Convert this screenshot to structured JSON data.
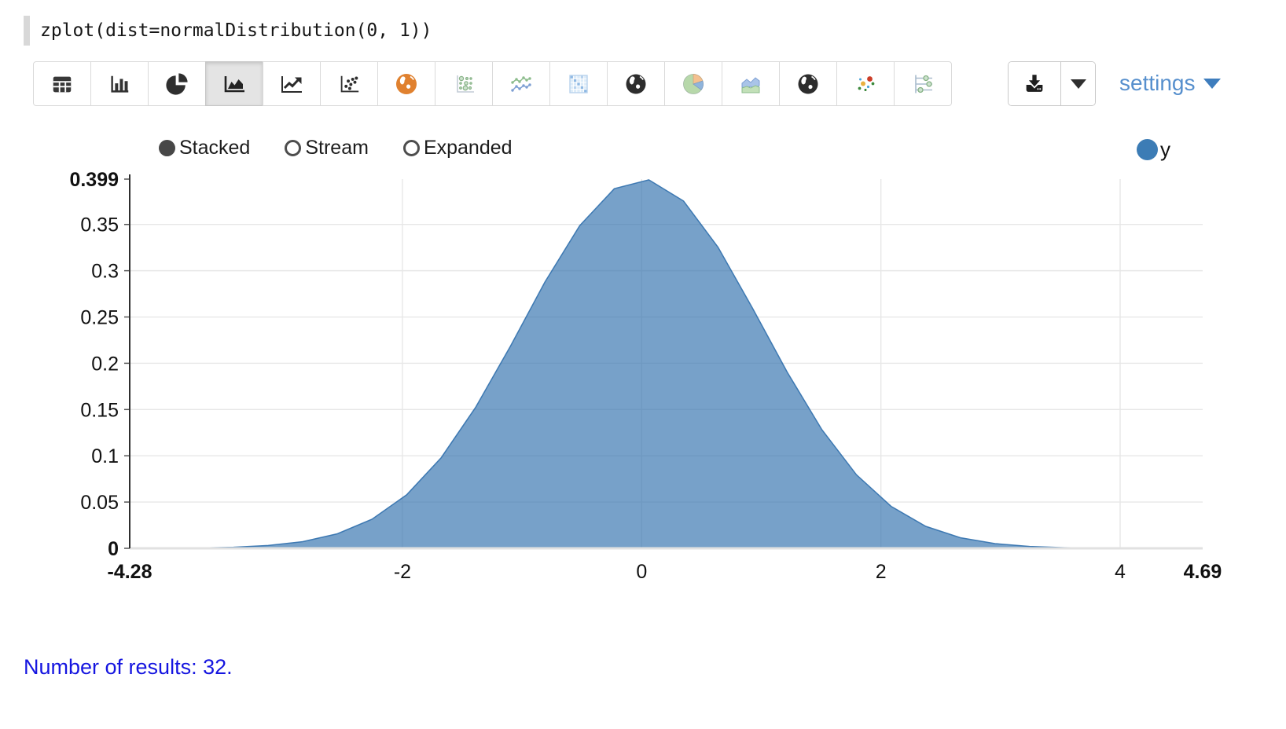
{
  "code_cell": {
    "code": "zplot(dist=normalDistribution(0, 1))"
  },
  "toolbar": {
    "viz_buttons": [
      {
        "icon": "table-icon",
        "selected": false
      },
      {
        "icon": "bar-chart-icon",
        "selected": false
      },
      {
        "icon": "pie-chart-icon",
        "selected": false
      },
      {
        "icon": "area-chart-icon",
        "selected": true
      },
      {
        "icon": "line-chart-icon",
        "selected": false
      },
      {
        "icon": "scatter-plot-icon",
        "selected": false
      },
      {
        "icon": "globe-orange-icon",
        "selected": false
      },
      {
        "icon": "bubble-chart-icon",
        "selected": false
      },
      {
        "icon": "multi-line-chart-icon",
        "selected": false
      },
      {
        "icon": "heatmap-icon",
        "selected": false
      },
      {
        "icon": "globe-dark-icon",
        "selected": false
      },
      {
        "icon": "pie-color-icon",
        "selected": false
      },
      {
        "icon": "stacked-area-icon",
        "selected": false
      },
      {
        "icon": "globe-dark-2-icon",
        "selected": false
      },
      {
        "icon": "scatter-color-icon",
        "selected": false
      },
      {
        "icon": "parallel-coordinates-icon",
        "selected": false
      }
    ],
    "download_icon": "download-icon",
    "download_caret_icon": "caret-down-icon",
    "settings_label": "settings"
  },
  "controls": {
    "radios": [
      {
        "label": "Stacked",
        "selected": true
      },
      {
        "label": "Stream",
        "selected": false
      },
      {
        "label": "Expanded",
        "selected": false
      }
    ],
    "legend": [
      {
        "label": "y",
        "color": "#3c7cb5"
      }
    ]
  },
  "chart_data": {
    "type": "area",
    "title": "",
    "xlabel": "",
    "ylabel": "",
    "xlim": [
      -4.28,
      4.69
    ],
    "ylim": [
      0,
      0.399
    ],
    "grid": true,
    "legend_position": "top-right",
    "x_ticks": [
      "-4.28",
      "-2",
      "0",
      "2",
      "4",
      "4.69"
    ],
    "x_tick_values": [
      -4.28,
      -2,
      0,
      2,
      4,
      4.69
    ],
    "y_ticks": [
      "0.399",
      "0.35",
      "0.3",
      "0.25",
      "0.2",
      "0.15",
      "0.1",
      "0.05",
      "0"
    ],
    "y_tick_values": [
      0.399,
      0.35,
      0.3,
      0.25,
      0.2,
      0.15,
      0.1,
      0.05,
      0
    ],
    "series": [
      {
        "name": "y",
        "color": "#1f77b4",
        "x": [
          -4.28,
          -3.991,
          -3.701,
          -3.412,
          -3.123,
          -2.833,
          -2.544,
          -2.255,
          -1.965,
          -1.676,
          -1.387,
          -1.097,
          -0.808,
          -0.518,
          -0.229,
          0.06,
          0.35,
          0.639,
          0.928,
          1.218,
          1.507,
          1.796,
          2.086,
          2.375,
          2.664,
          2.954,
          3.243,
          3.532,
          3.822,
          4.111,
          4.4,
          4.69
        ],
        "y": [
          4e-05,
          0.00014,
          0.00042,
          0.00118,
          0.00305,
          0.00721,
          0.0157,
          0.03142,
          0.05784,
          0.09796,
          0.15257,
          0.21853,
          0.28788,
          0.34877,
          0.38861,
          0.39822,
          0.37529,
          0.32529,
          0.25929,
          0.1901,
          0.12815,
          0.07948,
          0.04533,
          0.02376,
          0.01147,
          0.00508,
          0.00207,
          0.00078,
          0.00027,
          9e-05,
          2e-05,
          1e-05
        ]
      }
    ]
  },
  "colors": {
    "area_fill": "rgba(49,112,173,0.66)",
    "area_stroke": "rgba(49,112,173,0.9)",
    "gridline": "#e7e7e7",
    "baseline": "#e1e1e1",
    "y_axis_line": "#2f2f2f",
    "tick_label": "#111111",
    "legend_dot": "#3c7cb5",
    "settings_link": "#568fcd",
    "results_text": "#1515e0"
  },
  "footer": {
    "results_text": "Number of results: 32."
  }
}
